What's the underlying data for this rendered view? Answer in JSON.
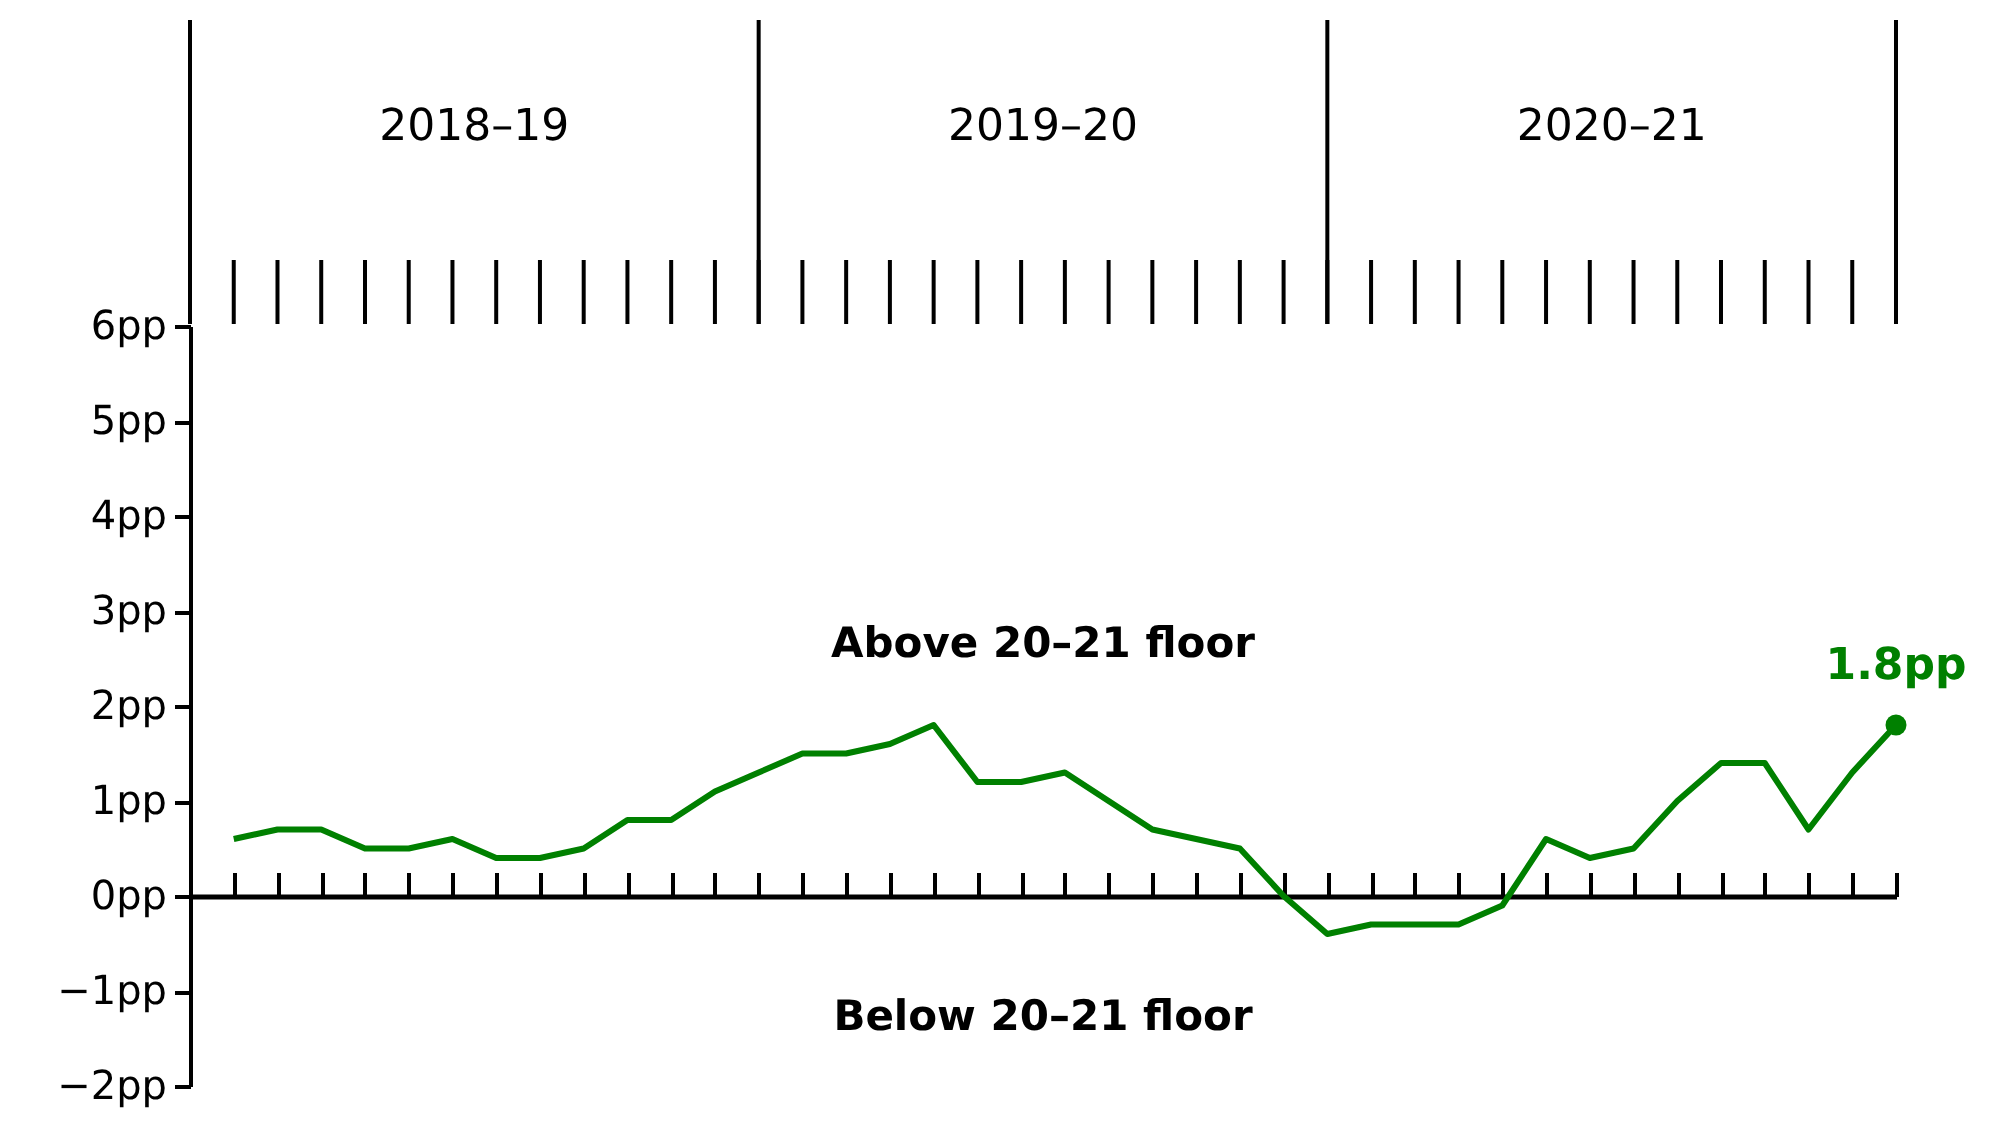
{
  "chart_data": {
    "type": "line",
    "categories": [
      null,
      null,
      null,
      null,
      null,
      null,
      null,
      null,
      null,
      null,
      null,
      null,
      null,
      null,
      null,
      null,
      null,
      null,
      null,
      null,
      null,
      null,
      null,
      null,
      null,
      null,
      null,
      null,
      null,
      null,
      null,
      null,
      null,
      null,
      null,
      null,
      null,
      null,
      null
    ],
    "series": [
      {
        "color": "#008000",
        "values": [
          0.6,
          0.7,
          0.7,
          0.5,
          0.5,
          0.6,
          0.4,
          0.4,
          0.5,
          0.8,
          0.8,
          1.1,
          1.3,
          1.5,
          1.5,
          1.6,
          1.8,
          1.2,
          1.2,
          1.3,
          1.0,
          0.7,
          0.6,
          0.5,
          0.0,
          -0.4,
          -0.3,
          -0.3,
          -0.3,
          -0.1,
          0.6,
          0.4,
          0.5,
          1.0,
          1.4,
          1.4,
          0.7,
          1.3,
          1.8
        ],
        "value_labels": [
          null,
          null,
          null,
          null,
          null,
          null,
          null,
          null,
          null,
          null,
          null,
          null,
          null,
          null,
          null,
          null,
          null,
          null,
          null,
          null,
          null,
          null,
          null,
          null,
          null,
          null,
          null,
          null,
          null,
          null,
          null,
          null,
          null,
          null,
          null,
          null,
          null,
          null,
          "1.8pp"
        ]
      }
    ],
    "ylim": [
      -2,
      6
    ],
    "yticks": [
      {
        "value": -2,
        "label": "−2pp"
      },
      {
        "value": -1,
        "label": "−1pp"
      },
      {
        "value": 0,
        "label": "0pp"
      },
      {
        "value": 1,
        "label": "1pp"
      },
      {
        "value": 2,
        "label": "2pp"
      },
      {
        "value": 3,
        "label": "3pp"
      },
      {
        "value": 4,
        "label": "4pp"
      },
      {
        "value": 5,
        "label": "5pp"
      },
      {
        "value": 6,
        "label": "6pp"
      }
    ],
    "annotations": [
      "2018–19",
      "2019–20",
      "2020–21",
      "Above 20–21 floor",
      "Below 20–21 floor"
    ],
    "marker": "none",
    "line_style": "solid"
  }
}
